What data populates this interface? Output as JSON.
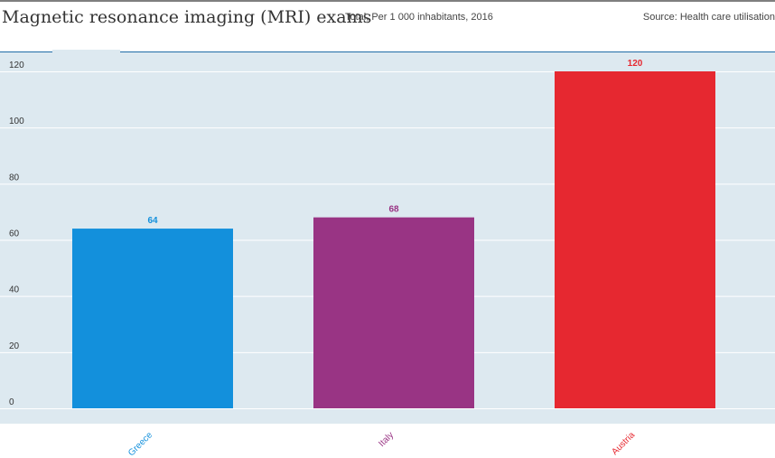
{
  "header": {
    "title": "Magnetic resonance imaging (MRI) exams",
    "subtitle": "Total, Per 1 000 inhabitants, 2016",
    "source": "Source: Health care utilisation"
  },
  "colors": {
    "background": "#dde9f0",
    "accent": "#1f6ca6",
    "gridline": "#ffffff"
  },
  "chart_data": {
    "type": "bar",
    "title": "Magnetic resonance imaging (MRI) exams",
    "subtitle": "Total, Per 1 000 inhabitants, 2016",
    "xlabel": "",
    "ylabel": "",
    "categories": [
      "Greece",
      "Italy",
      "Austria"
    ],
    "values": [
      64,
      68,
      120
    ],
    "value_labels": [
      "64",
      "68",
      "120"
    ],
    "colors": [
      "#1390dc",
      "#993484",
      "#e62830"
    ],
    "ylim": [
      0,
      120
    ],
    "yticks": [
      0,
      20,
      40,
      60,
      80,
      100,
      120
    ],
    "ytick_labels": [
      "0",
      "20",
      "40",
      "60",
      "80",
      "100",
      "120"
    ],
    "grid": true,
    "legend": "none"
  }
}
